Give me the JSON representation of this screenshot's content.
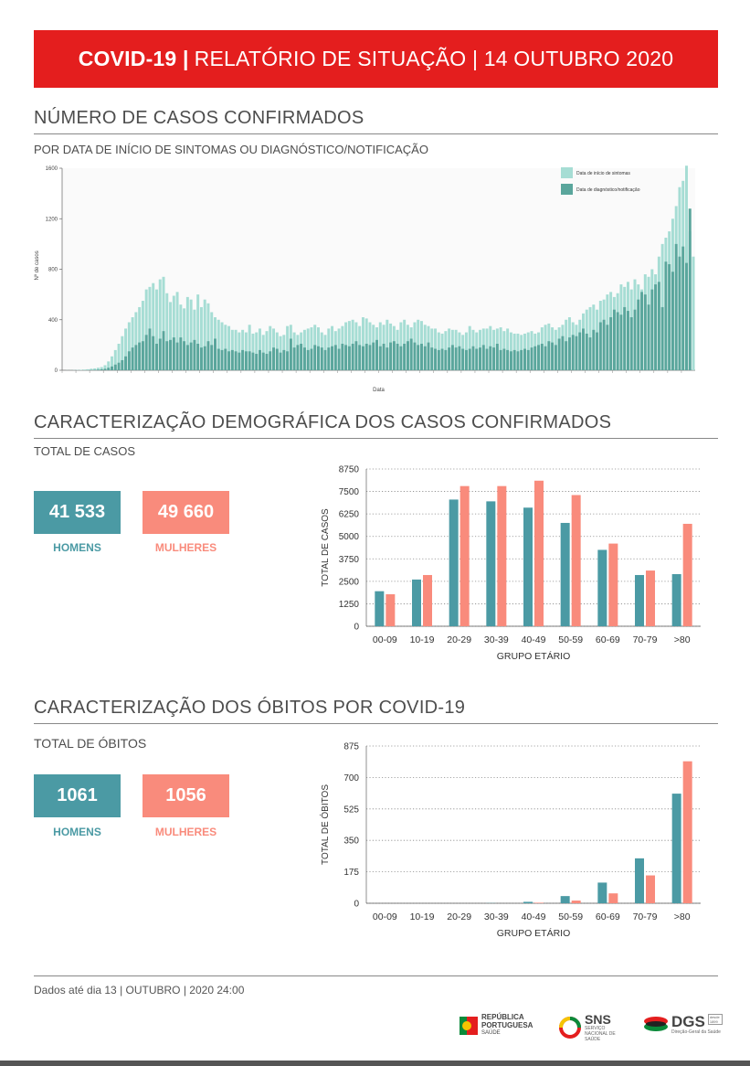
{
  "header": {
    "title_bold": "COVID-19 |",
    "title_rest": "RELATÓRIO DE SITUAÇÃO | 14 OUTUBRO 2020"
  },
  "section1": {
    "title": "NÚMERO DE CASOS CONFIRMADOS",
    "subtitle": "POR DATA DE INÍCIO DE SINTOMAS OU DIAGNÓSTICO/NOTIFICAÇÃO"
  },
  "section2": {
    "title": "CARACTERIZAÇÃO DEMOGRÁFICA DOS CASOS CONFIRMADOS",
    "subtitle": "TOTAL DE CASOS",
    "men_value": "41 533",
    "women_value": "49 660",
    "men_label": "HOMENS",
    "women_label": "MULHERES"
  },
  "section3": {
    "title": "CARACTERIZAÇÃO DOS ÓBITOS POR COVID-19",
    "subtitle": "TOTAL DE ÓBITOS",
    "men_value": "1061",
    "women_value": "1056",
    "men_label": "HOMENS",
    "women_label": "MULHERES"
  },
  "footer": {
    "text": "Dados até dia 13 | OUTUBRO | 2020 24:00"
  },
  "logos": {
    "republica": "REPÚBLICA PORTUGUESA",
    "republica_sub": "SAÚDE",
    "sns": "SNS",
    "sns_sub": "SERVIÇO NACIONAL DE SAÚDE",
    "dgs": "DGS",
    "dgs_sub": "Direção-Geral da Saúde",
    "dgs_since": "desde 1899"
  },
  "colors": {
    "red": "#e41e1e",
    "men": "#4b9aa4",
    "women": "#f98b7c",
    "onset": "#a6ddd4",
    "diag": "#5aa69c"
  },
  "chart_data": [
    {
      "type": "bar",
      "id": "daily",
      "ylabel": "Nº de casos",
      "xlabel": "Data",
      "ylim": [
        0,
        1600
      ],
      "yticks": [
        0,
        400,
        800,
        1200,
        1600
      ],
      "legend_position": "top-right",
      "series": [
        {
          "name": "Data de início de sintomas",
          "color": "#a6ddd4",
          "values": [
            0,
            1,
            1,
            2,
            3,
            4,
            6,
            8,
            12,
            15,
            20,
            25,
            40,
            70,
            110,
            160,
            210,
            270,
            330,
            380,
            420,
            460,
            500,
            550,
            640,
            660,
            690,
            640,
            720,
            740,
            610,
            540,
            590,
            620,
            520,
            490,
            580,
            560,
            480,
            600,
            500,
            560,
            530,
            460,
            420,
            400,
            380,
            360,
            350,
            320,
            320,
            300,
            320,
            300,
            360,
            290,
            300,
            330,
            280,
            310,
            350,
            330,
            300,
            270,
            280,
            350,
            360,
            300,
            280,
            300,
            320,
            330,
            340,
            360,
            340,
            300,
            280,
            330,
            350,
            310,
            330,
            350,
            380,
            390,
            400,
            380,
            350,
            420,
            410,
            380,
            360,
            340,
            380,
            360,
            400,
            370,
            350,
            320,
            380,
            400,
            360,
            340,
            380,
            400,
            390,
            360,
            350,
            330,
            330,
            300,
            290,
            310,
            330,
            320,
            320,
            300,
            280,
            300,
            350,
            320,
            300,
            320,
            330,
            330,
            350,
            320,
            330,
            340,
            310,
            330,
            300,
            290,
            290,
            280,
            290,
            300,
            310,
            290,
            300,
            340,
            360,
            370,
            340,
            320,
            340,
            360,
            400,
            420,
            380,
            360,
            400,
            450,
            480,
            500,
            520,
            480,
            550,
            560,
            600,
            620,
            580,
            610,
            680,
            660,
            700,
            640,
            720,
            680,
            640,
            760,
            740,
            800,
            760,
            900,
            1000,
            1050,
            1100,
            1200,
            1300,
            1450,
            1500,
            1620,
            1100,
            900
          ]
        },
        {
          "name": "Data de diagnóstico/notificação",
          "color": "#5aa69c",
          "values": [
            0,
            0,
            0,
            0,
            0,
            0,
            0,
            1,
            2,
            3,
            5,
            8,
            12,
            20,
            30,
            45,
            60,
            80,
            110,
            150,
            180,
            200,
            220,
            230,
            280,
            330,
            270,
            210,
            250,
            310,
            230,
            240,
            260,
            220,
            260,
            230,
            200,
            220,
            240,
            210,
            180,
            190,
            230,
            200,
            250,
            170,
            160,
            170,
            150,
            160,
            150,
            140,
            160,
            150,
            150,
            140,
            130,
            160,
            140,
            130,
            150,
            180,
            170,
            140,
            160,
            150,
            250,
            180,
            200,
            210,
            180,
            160,
            170,
            200,
            190,
            180,
            160,
            180,
            190,
            200,
            170,
            210,
            200,
            190,
            210,
            230,
            200,
            190,
            210,
            200,
            220,
            240,
            190,
            210,
            180,
            220,
            230,
            210,
            190,
            210,
            230,
            250,
            220,
            200,
            210,
            190,
            220,
            180,
            170,
            160,
            170,
            160,
            180,
            200,
            180,
            190,
            170,
            160,
            170,
            190,
            170,
            180,
            200,
            170,
            190,
            180,
            210,
            160,
            170,
            160,
            150,
            160,
            150,
            160,
            170,
            160,
            180,
            190,
            200,
            210,
            190,
            230,
            220,
            200,
            250,
            270,
            230,
            260,
            280,
            270,
            300,
            330,
            290,
            260,
            320,
            300,
            380,
            400,
            360,
            420,
            480,
            460,
            440,
            500,
            470,
            420,
            480,
            560,
            620,
            600,
            520,
            640,
            680,
            700,
            500,
            860,
            840,
            780,
            1000,
            900,
            980,
            850,
            1280
          ]
        }
      ]
    },
    {
      "type": "bar",
      "id": "cases-age",
      "categories": [
        "00-09",
        "10-19",
        "20-29",
        "30-39",
        "40-49",
        "50-59",
        "60-69",
        "70-79",
        ">80"
      ],
      "xlabel": "GRUPO ETÁRIO",
      "ylabel": "TOTAL DE CASOS",
      "ylim": [
        0,
        8750
      ],
      "yticks": [
        0,
        1250,
        2500,
        3750,
        5000,
        6250,
        7500,
        8750
      ],
      "series": [
        {
          "name": "HOMENS",
          "values": [
            1950,
            2600,
            7050,
            6950,
            6600,
            5750,
            4250,
            2850,
            2900
          ]
        },
        {
          "name": "MULHERES",
          "values": [
            1780,
            2850,
            7800,
            7800,
            8100,
            7300,
            4600,
            3100,
            5700
          ]
        }
      ]
    },
    {
      "type": "bar",
      "id": "deaths-age",
      "categories": [
        "00-09",
        "10-19",
        "20-29",
        "30-39",
        "40-49",
        "50-59",
        "60-69",
        "70-79",
        ">80"
      ],
      "xlabel": "GRUPO ETÁRIO",
      "ylabel": "TOTAL DE ÓBITOS",
      "ylim": [
        0,
        875
      ],
      "yticks": [
        0,
        175,
        350,
        525,
        700,
        875
      ],
      "series": [
        {
          "name": "HOMENS",
          "values": [
            0,
            0,
            0,
            1,
            8,
            40,
            115,
            250,
            610
          ]
        },
        {
          "name": "MULHERES",
          "values": [
            0,
            0,
            0,
            0,
            3,
            15,
            55,
            155,
            790
          ]
        }
      ]
    }
  ]
}
